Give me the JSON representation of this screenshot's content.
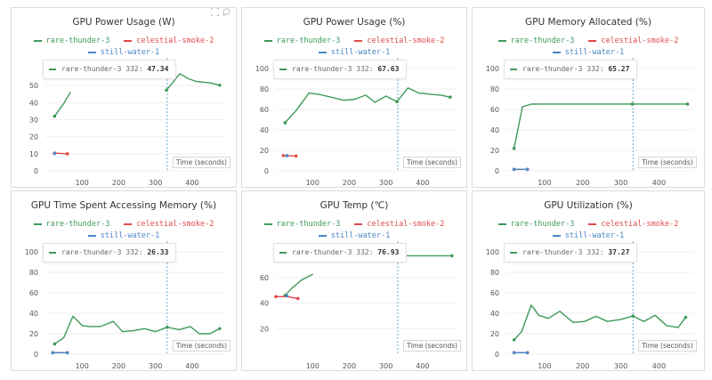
{
  "series_styles": [
    {
      "name": "rare-thunder-3",
      "color": "#3f9a5a"
    },
    {
      "name": "celestial-smoke-2",
      "color": "#e04a4a"
    },
    {
      "name": "still-water-1",
      "color": "#4b86c4"
    }
  ],
  "toolbar": {
    "expand_icon": "expand-icon",
    "comment_icon": "comment-icon"
  },
  "chart_data": [
    {
      "type": "line",
      "title": "GPU Power Usage (W)",
      "xlabel": "Time (seconds)",
      "xlim": [
        0,
        490
      ],
      "ylim": [
        0,
        60
      ],
      "x_ticks": [
        100,
        200,
        300,
        400
      ],
      "y_ticks": [
        0,
        10,
        20,
        30,
        40,
        50
      ],
      "series": [
        {
          "name": "rare-thunder-3",
          "x": [
            25,
            50,
            68,
            330,
            348,
            366,
            390,
            410,
            430,
            450,
            475
          ],
          "y": [
            32,
            39.5,
            46,
            47.34,
            52,
            57,
            54,
            52.5,
            52,
            51.5,
            50.2
          ]
        },
        {
          "name": "celestial-smoke-2",
          "x": [
            25,
            60
          ],
          "y": [
            10.4,
            10
          ]
        },
        {
          "name": "still-water-1",
          "x": [
            25
          ],
          "y": [
            10.2
          ]
        }
      ],
      "breaks": [
        {
          "series": "rare-thunder-3",
          "after_index": 2
        }
      ],
      "cursor_x": 332,
      "tooltip": {
        "series": "rare-thunder-3",
        "label": "rare-thunder-3 332:",
        "value": "47.34"
      }
    },
    {
      "type": "line",
      "title": "GPU Power Usage (%)",
      "xlabel": "Time (seconds)",
      "xlim": [
        0,
        490
      ],
      "ylim": [
        0,
        100
      ],
      "x_ticks": [
        100,
        200,
        300,
        400
      ],
      "y_ticks": [
        0,
        20,
        40,
        60,
        80,
        100
      ],
      "series": [
        {
          "name": "rare-thunder-3",
          "x": [
            25,
            55,
            90,
            115,
            150,
            185,
            215,
            245,
            270,
            300,
            330,
            360,
            390,
            420,
            450,
            475
          ],
          "y": [
            47,
            59,
            76,
            75,
            72,
            69,
            70,
            74,
            67,
            73,
            67.63,
            81,
            76,
            75,
            74,
            72
          ]
        },
        {
          "name": "celestial-smoke-2",
          "x": [
            20,
            55
          ],
          "y": [
            15,
            14.5
          ]
        },
        {
          "name": "still-water-1",
          "x": [
            30
          ],
          "y": [
            14.8
          ]
        }
      ],
      "cursor_x": 332,
      "tooltip": {
        "series": "rare-thunder-3",
        "label": "rare-thunder-3 332:",
        "value": "67.63"
      }
    },
    {
      "type": "line",
      "title": "GPU Memory Allocated (%)",
      "xlabel": "Time (seconds)",
      "xlim": [
        0,
        490
      ],
      "ylim": [
        0,
        100
      ],
      "x_ticks": [
        100,
        200,
        300,
        400
      ],
      "y_ticks": [
        0,
        20,
        40,
        60,
        80,
        100
      ],
      "series": [
        {
          "name": "rare-thunder-3",
          "x": [
            20,
            42,
            65,
            90,
            330,
            475
          ],
          "y": [
            22,
            62.6,
            65.2,
            65.27,
            65.27,
            65.27
          ]
        },
        {
          "name": "celestial-smoke-2",
          "x": [
            20,
            55
          ],
          "y": [
            1.5,
            1.5
          ]
        },
        {
          "name": "still-water-1",
          "x": [
            20,
            55
          ],
          "y": [
            1.5,
            1.5
          ]
        }
      ],
      "cursor_x": 332,
      "tooltip": {
        "series": "rare-thunder-3",
        "label": "rare-thunder-3 332:",
        "value": "65.27"
      }
    },
    {
      "type": "line",
      "title": "GPU Time Spent Accessing Memory (%)",
      "xlabel": "Time (seconds)",
      "xlim": [
        0,
        490
      ],
      "ylim": [
        0,
        100
      ],
      "x_ticks": [
        100,
        200,
        300,
        400
      ],
      "y_ticks": [
        0,
        20,
        40,
        60,
        80,
        100
      ],
      "series": [
        {
          "name": "rare-thunder-3",
          "x": [
            25,
            50,
            75,
            100,
            120,
            150,
            185,
            210,
            240,
            270,
            300,
            332,
            365,
            395,
            420,
            448,
            475
          ],
          "y": [
            10,
            16,
            37,
            28,
            27,
            27,
            32,
            22,
            23,
            25,
            22,
            26.33,
            24,
            27,
            20,
            20,
            25
          ]
        },
        {
          "name": "celestial-smoke-2",
          "x": [
            20,
            60
          ],
          "y": [
            1.5,
            1.5
          ]
        },
        {
          "name": "still-water-1",
          "x": [
            20,
            60
          ],
          "y": [
            1.5,
            1.5
          ]
        }
      ],
      "cursor_x": 332,
      "tooltip": {
        "series": "rare-thunder-3",
        "label": "rare-thunder-3 332:",
        "value": "26.33"
      }
    },
    {
      "type": "line",
      "title": "GPU Temp (℃)",
      "xlabel": "Time (seconds)",
      "xlim": [
        0,
        490
      ],
      "ylim": [
        0,
        80
      ],
      "x_ticks": [
        100,
        200,
        300,
        400
      ],
      "y_ticks": [
        20,
        40,
        60
      ],
      "series": [
        {
          "name": "rare-thunder-3",
          "x": [
            25,
            45,
            70,
            100,
            330,
            480
          ],
          "y": [
            46,
            52,
            58,
            62.5,
            76.93,
            76.93
          ]
        },
        {
          "name": "celestial-smoke-2",
          "x": [
            0,
            30,
            60
          ],
          "y": [
            45,
            45,
            43.5
          ]
        },
        {
          "name": "still-water-1",
          "x": [
            30
          ],
          "y": [
            45.5
          ]
        }
      ],
      "breaks": [
        {
          "series": "rare-thunder-3",
          "after_index": 3
        }
      ],
      "cursor_x": 332,
      "tooltip": {
        "series": "rare-thunder-3",
        "label": "rare-thunder-3 332:",
        "value": "76.93"
      }
    },
    {
      "type": "line",
      "title": "GPU Utilization (%)",
      "xlabel": "Time (seconds)",
      "xlim": [
        0,
        490
      ],
      "ylim": [
        0,
        100
      ],
      "x_ticks": [
        100,
        200,
        300,
        400
      ],
      "y_ticks": [
        0,
        20,
        40,
        60,
        80,
        100
      ],
      "series": [
        {
          "name": "rare-thunder-3",
          "x": [
            20,
            40,
            65,
            85,
            110,
            140,
            175,
            205,
            235,
            265,
            300,
            332,
            360,
            390,
            420,
            450,
            470
          ],
          "y": [
            14,
            22,
            48,
            38,
            35,
            42,
            31,
            32,
            37,
            32,
            34,
            37.27,
            32,
            38,
            28,
            26,
            36
          ]
        },
        {
          "name": "celestial-smoke-2",
          "x": [
            20,
            55
          ],
          "y": [
            1.5,
            1.5
          ]
        },
        {
          "name": "still-water-1",
          "x": [
            20,
            55
          ],
          "y": [
            1.5,
            1.5
          ]
        }
      ],
      "cursor_x": 332,
      "tooltip": {
        "series": "rare-thunder-3",
        "label": "rare-thunder-3 332:",
        "value": "37.27"
      }
    }
  ]
}
